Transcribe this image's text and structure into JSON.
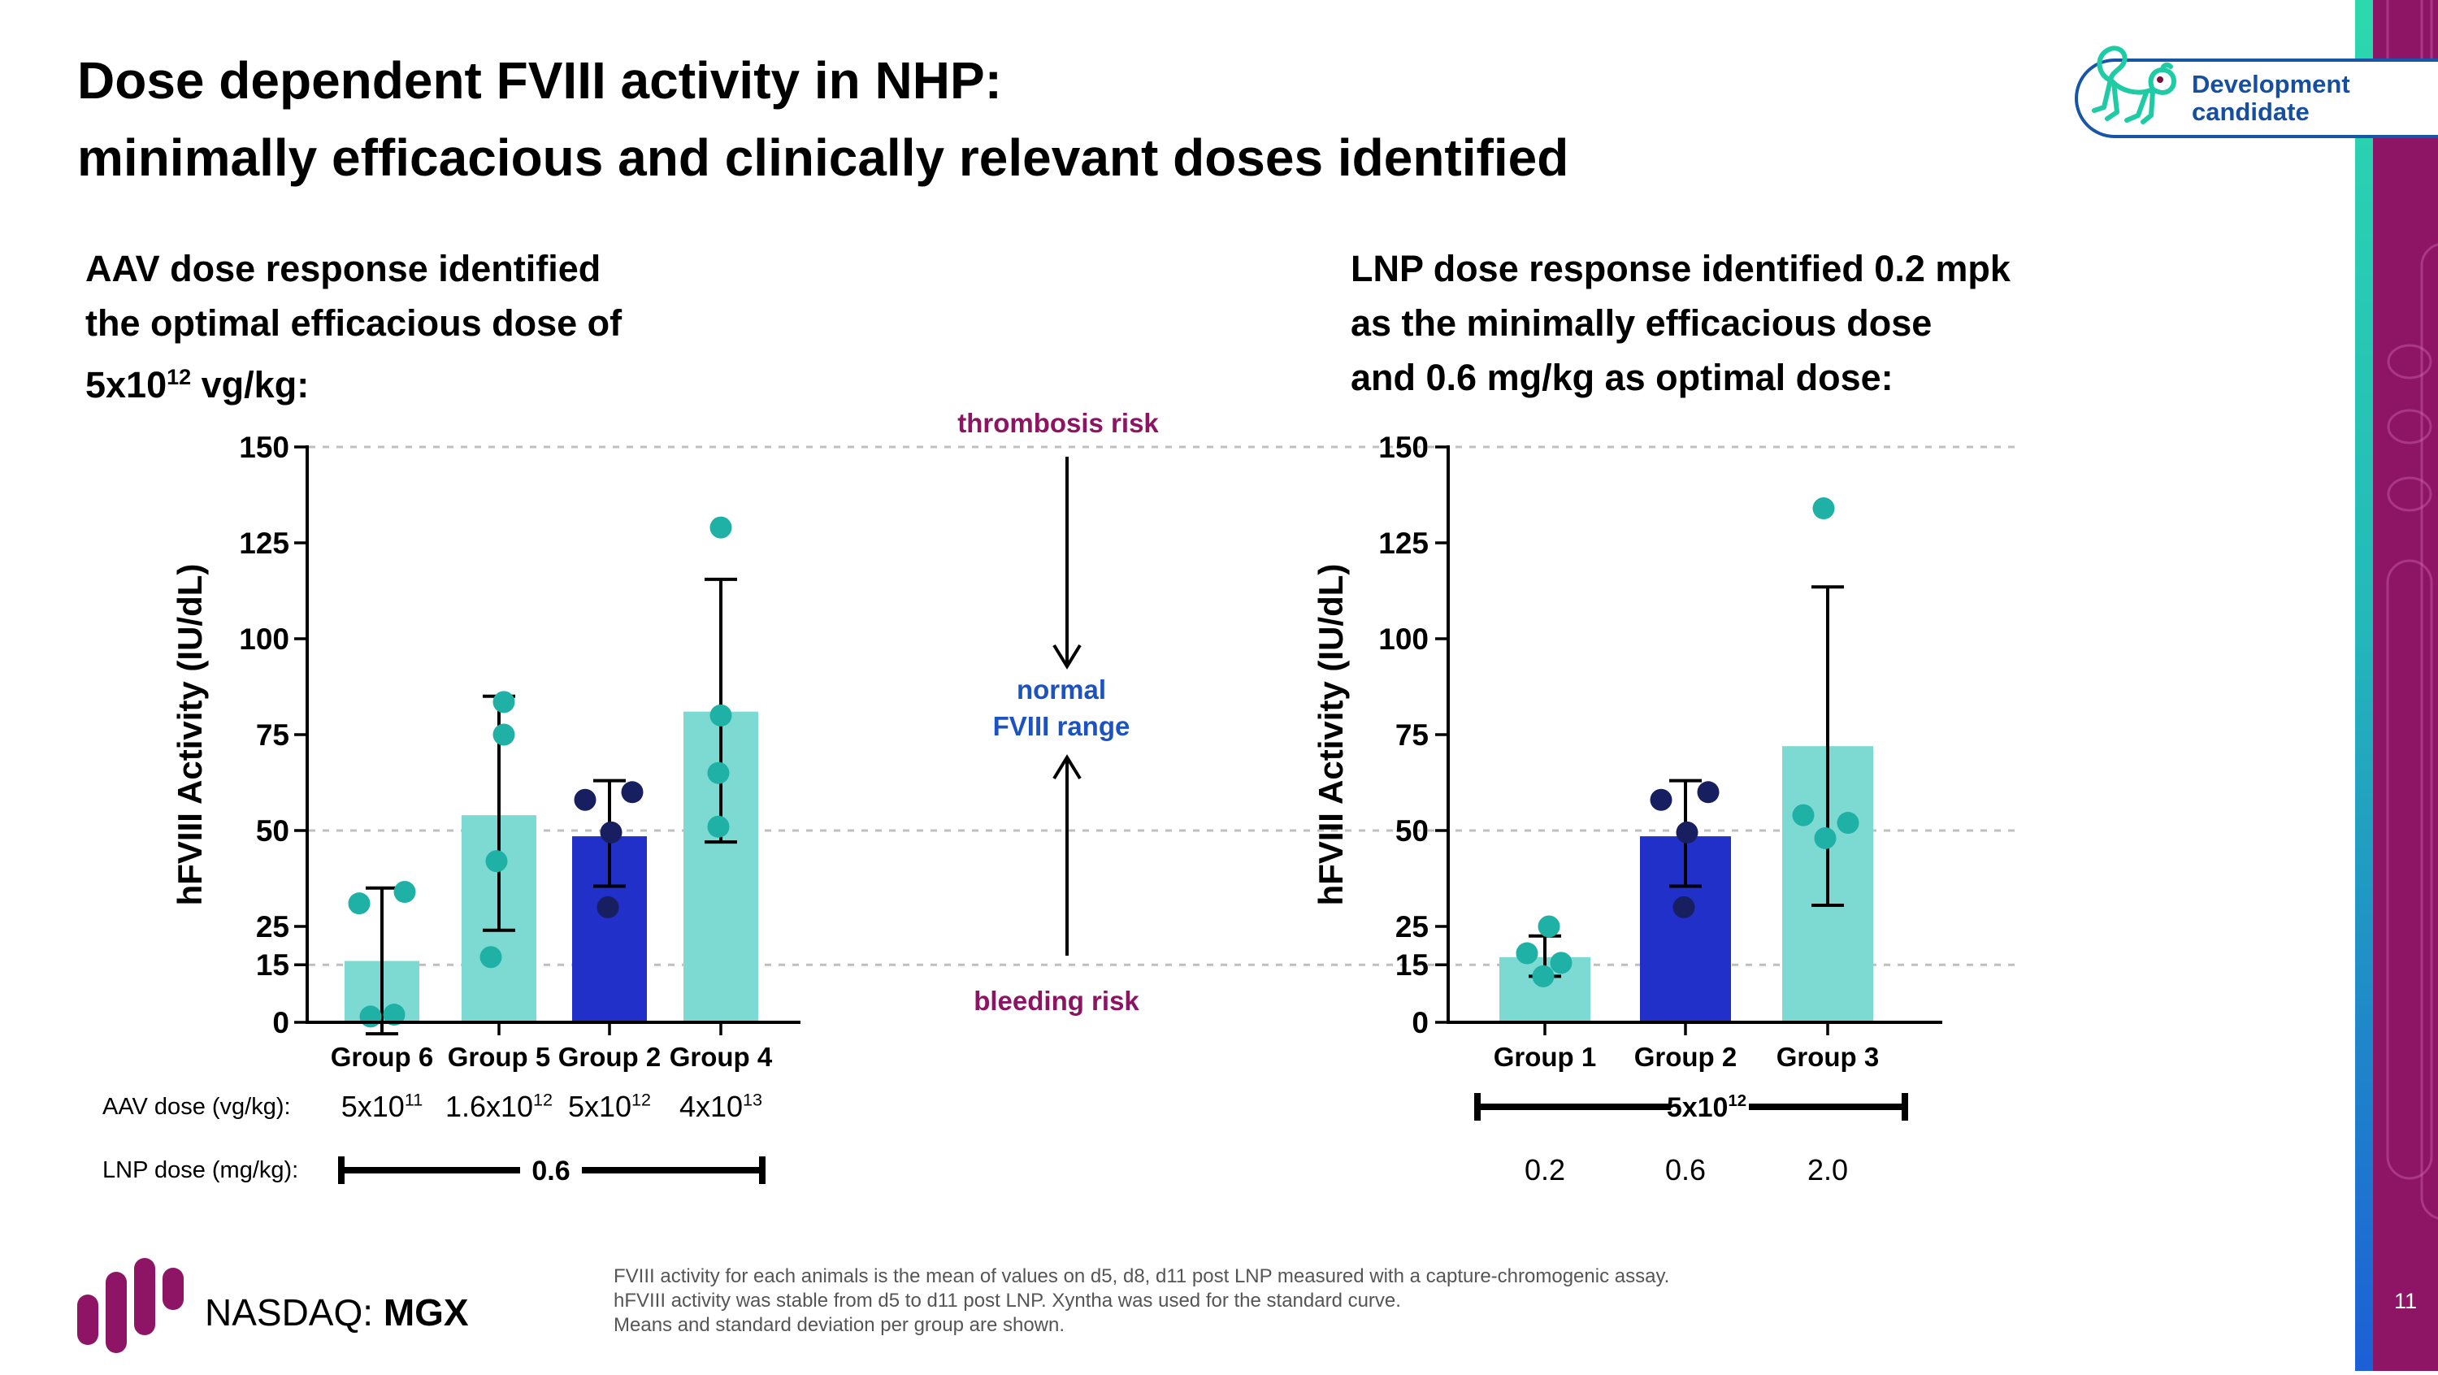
{
  "slide": {
    "title_line1": "Dose dependent FVIII activity in NHP:",
    "title_line2": "minimally efficacious and clinically relevant doses identified",
    "page_number": "11"
  },
  "badge": {
    "line1": "Development",
    "line2": "candidate",
    "icon": "monkey-icon"
  },
  "left_headline": {
    "line1": "AAV dose response identified",
    "line2": "the optimal efficacious dose of",
    "line3_base": "5x10",
    "line3_sup": "12",
    "line3_rest": " vg/kg:"
  },
  "right_headline": {
    "line1": "LNP dose response identified 0.2 mpk",
    "line2": "as the minimally efficacious dose",
    "line3": "and 0.6 mg/kg as optimal dose:"
  },
  "annotations": {
    "top": "thrombosis risk",
    "mid_line1": "normal",
    "mid_line2": "FVIII range",
    "bottom": "bleeding risk"
  },
  "chart_data": [
    {
      "type": "bar",
      "side": "left",
      "ylabel": "hFVIII Activity (IU/dL)",
      "ylim": [
        0,
        150
      ],
      "yticks": [
        0,
        15,
        25,
        50,
        75,
        100,
        125,
        150
      ],
      "grid_values": [
        15,
        50,
        150
      ],
      "grid_style": "dashed",
      "categories": [
        "Group 6",
        "Group 5",
        "Group 2",
        "Group 4"
      ],
      "groups": [
        {
          "label": "Group 6",
          "bar": 16,
          "color": "teal",
          "err_low": -3,
          "err_high": 35,
          "points": [
            {
              "v": 31,
              "dx": -28
            },
            {
              "v": 34,
              "dx": 28
            },
            {
              "v": 1.5,
              "dx": -14
            },
            {
              "v": 2,
              "dx": 15
            }
          ]
        },
        {
          "label": "Group 5",
          "bar": 54,
          "color": "teal",
          "err_low": 24,
          "err_high": 85,
          "points": [
            {
              "v": 83.5,
              "dx": 6
            },
            {
              "v": 75,
              "dx": 6
            },
            {
              "v": 42,
              "dx": -3
            },
            {
              "v": 17,
              "dx": -10
            }
          ]
        },
        {
          "label": "Group 2",
          "bar": 48.5,
          "color": "blue",
          "err_low": 35.5,
          "err_high": 63,
          "points": [
            {
              "v": 58,
              "dx": -30
            },
            {
              "v": 60,
              "dx": 28
            },
            {
              "v": 49.5,
              "dx": 2
            },
            {
              "v": 30,
              "dx": -2
            }
          ]
        },
        {
          "label": "Group 4",
          "bar": 81,
          "color": "teal",
          "err_low": 47,
          "err_high": 115.5,
          "points": [
            {
              "v": 129,
              "dx": 0
            },
            {
              "v": 80,
              "dx": 0
            },
            {
              "v": 65,
              "dx": -3
            },
            {
              "v": 51,
              "dx": -3
            }
          ]
        }
      ],
      "aav_row_label": "AAV dose (vg/kg):",
      "aav_values": [
        {
          "base": "5x10",
          "sup": "11"
        },
        {
          "base": "1.6x10",
          "sup": "12"
        },
        {
          "base": "5x10",
          "sup": "12"
        },
        {
          "base": "4x10",
          "sup": "13"
        }
      ],
      "lnp_row_label": "LNP dose (mg/kg):",
      "lnp_bracket_label": "0.6"
    },
    {
      "type": "bar",
      "side": "right",
      "ylabel": "hFVIII Activity (IU/dL)",
      "ylim": [
        0,
        150
      ],
      "yticks": [
        0,
        15,
        25,
        50,
        75,
        100,
        125,
        150
      ],
      "grid_values": [
        15,
        50,
        150
      ],
      "grid_style": "dashed",
      "categories": [
        "Group 1",
        "Group 2",
        "Group 3"
      ],
      "groups": [
        {
          "label": "Group 1",
          "bar": 17,
          "color": "teal",
          "err_low": 12,
          "err_high": 22.5,
          "points": [
            {
              "v": 25,
              "dx": 5
            },
            {
              "v": 18,
              "dx": -22
            },
            {
              "v": 15.5,
              "dx": 20
            },
            {
              "v": 12,
              "dx": -2
            }
          ]
        },
        {
          "label": "Group 2",
          "bar": 48.5,
          "color": "blue",
          "err_low": 35.5,
          "err_high": 63,
          "points": [
            {
              "v": 58,
              "dx": -30
            },
            {
              "v": 60,
              "dx": 28
            },
            {
              "v": 49.5,
              "dx": 2
            },
            {
              "v": 30,
              "dx": -2
            }
          ]
        },
        {
          "label": "Group 3",
          "bar": 72,
          "color": "teal",
          "err_low": 30.5,
          "err_high": 113.5,
          "points": [
            {
              "v": 134,
              "dx": -5
            },
            {
              "v": 54,
              "dx": -30
            },
            {
              "v": 52,
              "dx": 25
            },
            {
              "v": 48,
              "dx": -3
            }
          ]
        }
      ],
      "aav_bracket_label": {
        "base": "5x10",
        "sup": "12"
      },
      "lnp_values": [
        "0.2",
        "0.6",
        "2.0"
      ]
    }
  ],
  "footer": {
    "nasdaq_label": "NASDAQ:",
    "ticker": "MGX",
    "notes": [
      "FVIII activity for each animals is the mean of values on d5, d8, d11 post LNP measured with a capture-chromogenic assay.",
      "hFVIII activity was stable from d5 to d11 post LNP. Xyntha was used for the standard curve.",
      "Means and standard deviation per group are shown."
    ]
  },
  "colors": {
    "teal_bar": "#7DDAD2",
    "teal_dot": "#1FB0A6",
    "blue_bar": "#2030C8",
    "navy_dot": "#181F60",
    "magenta_text": "#8C1463",
    "band_purple": "#8E1566",
    "annotation_blue": "#1C53C0",
    "badge_blue": "#174FA0",
    "badge_border": "#1655A8",
    "monkey_teal": "#1ECBA4",
    "grid_gray": "#BFBFBF",
    "axis_black": "#000000"
  }
}
